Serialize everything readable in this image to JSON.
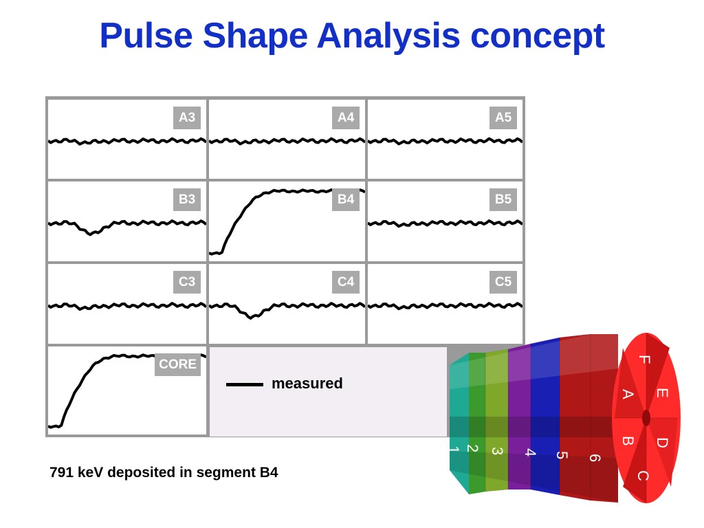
{
  "title": "Pulse Shape Analysis concept",
  "panels": [
    {
      "label": "A3",
      "trace": "flat",
      "dip": 0.25
    },
    {
      "label": "A4",
      "trace": "flat",
      "dip": 0.2
    },
    {
      "label": "A5",
      "trace": "flat",
      "dip": 0.2
    },
    {
      "label": "B3",
      "trace": "dip",
      "dip": 0.55
    },
    {
      "label": "B4",
      "trace": "rise"
    },
    {
      "label": "B5",
      "trace": "flat",
      "dip": 0.25
    },
    {
      "label": "C3",
      "trace": "flat",
      "dip": 0.35
    },
    {
      "label": "C4",
      "trace": "dip",
      "dip": 0.6
    },
    {
      "label": "C5",
      "trace": "flat",
      "dip": 0.25
    },
    {
      "label": "CORE",
      "trace": "rise"
    }
  ],
  "legend": {
    "label": "measured"
  },
  "caption": "791 keV deposited in segment B4",
  "detector": {
    "segment_numbers": [
      "1",
      "2",
      "3",
      "4",
      "5",
      "6"
    ],
    "sector_letters": [
      "A",
      "B",
      "C",
      "D",
      "E",
      "F"
    ]
  }
}
